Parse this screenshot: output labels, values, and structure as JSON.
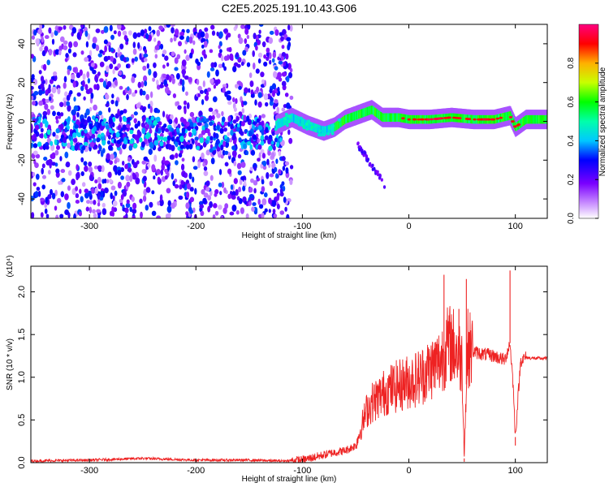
{
  "figure": {
    "title": "C2E5.2025.191.10.43.G06"
  },
  "chart_data": [
    {
      "type": "heatmap",
      "title": "C2E5.2025.191.10.43.G06",
      "xlabel": "Height of straight line (km)",
      "ylabel": "Frequency (Hz)",
      "xlim": [
        -355,
        130
      ],
      "ylim": [
        -50,
        50
      ],
      "xticks": [
        -300,
        -200,
        -100,
        0,
        100
      ],
      "xtick_labels": [
        "-300",
        "-200",
        "-100",
        "0",
        "100"
      ],
      "yticks": [
        -40,
        -20,
        0,
        20,
        40
      ],
      "ytick_labels": [
        "-40",
        "-20",
        "0",
        "20",
        "40"
      ],
      "colorbar": {
        "label": "Normalized spectral amplitude",
        "range": [
          0,
          1
        ],
        "ticks": [
          0.0,
          0.2,
          0.4,
          0.6,
          0.8
        ],
        "tick_labels": [
          "0.0",
          "0.2",
          "0.4",
          "0.6",
          "0.8"
        ],
        "colormap": "rainbow (white-violet-blue-cyan-green-yellow-red-magenta)"
      },
      "features": [
        {
          "region": "noise",
          "x_range": [
            -355,
            -110
          ],
          "freq_range": [
            -50,
            50
          ],
          "amplitude": [
            0.05,
            0.35
          ]
        },
        {
          "region": "weak band",
          "x_range": [
            -355,
            -120
          ],
          "freq_center": -6,
          "amplitude": [
            0.15,
            0.45
          ]
        },
        {
          "region": "carrier track",
          "x_range": [
            -125,
            130
          ],
          "freq_center": 1,
          "amplitude": [
            0.3,
            1.0
          ]
        },
        {
          "region": "secondary track",
          "x_range": [
            -48,
            -20
          ],
          "freq_range": [
            -12,
            -35
          ],
          "amplitude": [
            0.1,
            0.3
          ]
        }
      ],
      "track_points": [
        {
          "x": -125,
          "f": -2
        },
        {
          "x": -110,
          "f": 2
        },
        {
          "x": -95,
          "f": -2
        },
        {
          "x": -80,
          "f": -5
        },
        {
          "x": -70,
          "f": -3
        },
        {
          "x": -60,
          "f": 1
        },
        {
          "x": -45,
          "f": 4
        },
        {
          "x": -35,
          "f": 6
        },
        {
          "x": -25,
          "f": 2
        },
        {
          "x": -10,
          "f": 2
        },
        {
          "x": 0,
          "f": 1
        },
        {
          "x": 20,
          "f": 1
        },
        {
          "x": 40,
          "f": 2
        },
        {
          "x": 60,
          "f": 1
        },
        {
          "x": 80,
          "f": 1
        },
        {
          "x": 95,
          "f": 3
        },
        {
          "x": 100,
          "f": -3
        },
        {
          "x": 110,
          "f": 1
        },
        {
          "x": 130,
          "f": 1
        }
      ]
    },
    {
      "type": "line",
      "xlabel": "Height of straight line (km)",
      "ylabel": "SNR (10 * v/v)",
      "y_multiplier_label": "(x10⁴)",
      "xlim": [
        -355,
        130
      ],
      "ylim": [
        0,
        2.3
      ],
      "xticks": [
        -300,
        -200,
        -100,
        0,
        100
      ],
      "xtick_labels": [
        "-300",
        "-200",
        "-100",
        "0",
        "100"
      ],
      "yticks": [
        0.0,
        0.5,
        1.0,
        1.5,
        2.0
      ],
      "ytick_labels": [
        "0.0",
        "0.5",
        "1.0",
        "1.5",
        "2.0"
      ],
      "series": [
        {
          "color": "#ee2222",
          "x": [
            -355,
            -300,
            -250,
            -200,
            -150,
            -120,
            -100,
            -90,
            -80,
            -70,
            -60,
            -50,
            -45,
            -40,
            -35,
            -30,
            -20,
            -10,
            0,
            10,
            20,
            30,
            35,
            40,
            45,
            50,
            52,
            55,
            60,
            70,
            80,
            90,
            95,
            98,
            100,
            105,
            110,
            120,
            130
          ],
          "values": [
            0.02,
            0.03,
            0.05,
            0.03,
            0.03,
            0.02,
            0.03,
            0.06,
            0.09,
            0.12,
            0.14,
            0.2,
            0.4,
            0.6,
            0.7,
            0.75,
            0.85,
            0.9,
            0.95,
            1.0,
            1.1,
            1.2,
            1.35,
            1.4,
            1.3,
            1.2,
            0.05,
            1.35,
            1.3,
            1.27,
            1.25,
            1.2,
            1.4,
            0.9,
            0.3,
            1.2,
            1.23,
            1.22,
            1.22
          ]
        }
      ],
      "spikes": [
        {
          "x": 33,
          "y": 2.2
        },
        {
          "x": 47,
          "y": 1.8
        },
        {
          "x": 52,
          "y": 0.01
        },
        {
          "x": 54,
          "y": 2.15
        },
        {
          "x": 95,
          "y": 2.25
        },
        {
          "x": 100,
          "y": 0.2
        }
      ]
    }
  ]
}
